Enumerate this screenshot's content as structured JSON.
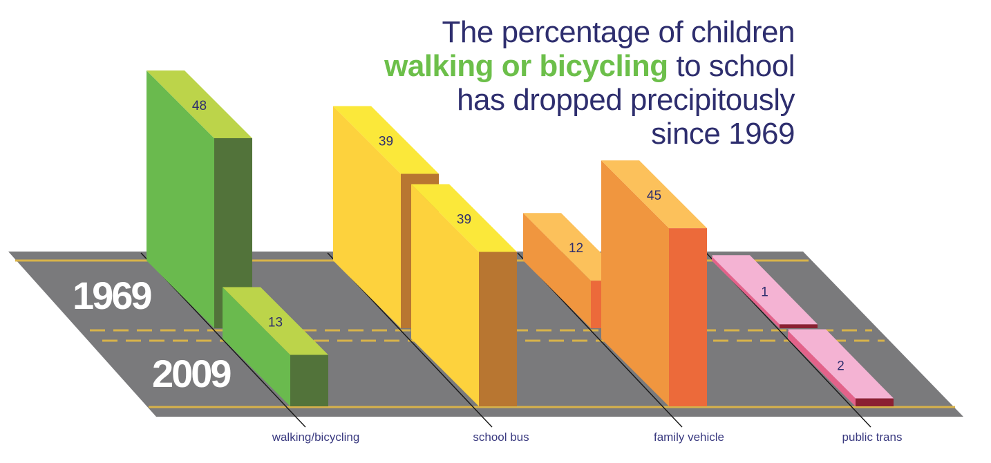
{
  "title": {
    "line1": "The percentage of children",
    "highlight": "walking or bicycling",
    "line2_rest": " to school",
    "line3": "has dropped precipitously",
    "line4": "since 1969",
    "highlight_color": "#6cbf4a",
    "text_color": "#2e2e6e"
  },
  "chart_data": {
    "type": "bar",
    "title": "The percentage of children walking or bicycling to school has dropped precipitously since 1969",
    "categories": [
      "walking/bicycling",
      "school bus",
      "family vehicle",
      "public trans"
    ],
    "series": [
      {
        "name": "1969",
        "values": [
          48,
          39,
          12,
          1
        ]
      },
      {
        "name": "2009",
        "values": [
          13,
          39,
          45,
          2
        ]
      }
    ],
    "value_labels": [
      "48",
      "39",
      "12",
      "1",
      "13",
      "39",
      "45",
      "2"
    ],
    "colors": {
      "walking/bicycling": {
        "front": "#6aba4e",
        "top": "#bcd44a",
        "end": "#52733a"
      },
      "school bus": {
        "front": "#fdd23d",
        "top": "#fbe83a",
        "end": "#b87631"
      },
      "family vehicle": {
        "front": "#f0963f",
        "top": "#fcc15b",
        "end": "#ec6a3a"
      },
      "public trans": {
        "front": "#f2a9cd",
        "top": "#f4b3d3",
        "end": "#8b2032"
      }
    },
    "style": "3d bars on a road"
  }
}
